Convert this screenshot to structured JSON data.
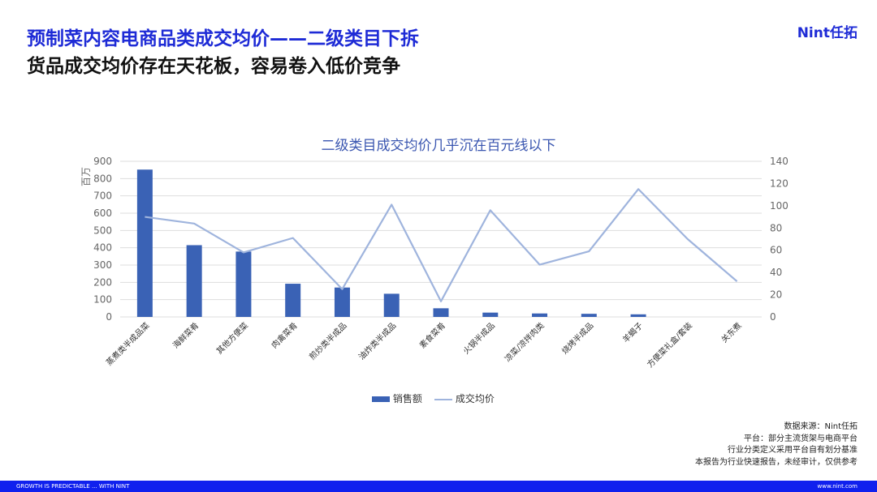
{
  "header": {
    "title": "预制菜内容电商品类成交均价——二级类目下拆",
    "subtitle": "货品成交均价存在天花板，容易卷入低价竞争",
    "logo": "Nint任拓"
  },
  "chart_data": {
    "type": "bar+line",
    "title": "二级类目成交均价几乎沉在百元线以下",
    "y_left_unit": "百万",
    "categories": [
      "蒸煮类半成品菜",
      "海鲜菜肴",
      "其他方便菜",
      "肉禽菜肴",
      "煎炒类半成品",
      "油炸类半成品",
      "素食菜肴",
      "火锅半成品",
      "凉菜/凉拌肉类",
      "烧烤半成品",
      "羊蝎子",
      "方便菜礼盒/套装",
      "关东煮"
    ],
    "series": [
      {
        "name": "销售额",
        "axis": "left",
        "type": "bar",
        "values": [
          852,
          415,
          378,
          192,
          170,
          134,
          50,
          25,
          20,
          18,
          15,
          0,
          0
        ]
      },
      {
        "name": "成交均价",
        "axis": "right",
        "type": "line",
        "values": [
          90,
          84,
          58,
          71,
          25,
          101,
          14,
          96,
          47,
          59,
          115,
          70,
          32
        ]
      }
    ],
    "y_left_ticks": [
      0,
      100,
      200,
      300,
      400,
      500,
      600,
      700,
      800,
      900
    ],
    "y_right_ticks": [
      0,
      20,
      40,
      60,
      80,
      100,
      120,
      140
    ],
    "ylim_left": [
      0,
      900
    ],
    "ylim_right": [
      0,
      140
    ],
    "grid": true,
    "legend_position": "bottom",
    "colors": {
      "bar": "#3a62b5",
      "line": "#9fb4dd",
      "grid": "#dddddd",
      "axis_text": "#666666"
    }
  },
  "notes": [
    "数据来源：Nint任拓",
    "平台：部分主流货架与电商平台",
    "行业分类定义采用平台自有划分基准",
    "本报告为行业快速报告，未经审计，仅供参考"
  ],
  "footer": {
    "left": "GROWTH IS PREDICTABLE ... WITH NINT",
    "right": "www.nint.com"
  },
  "colors": {
    "brand": "#1e2bd6",
    "footer_bg": "#1020ee"
  }
}
